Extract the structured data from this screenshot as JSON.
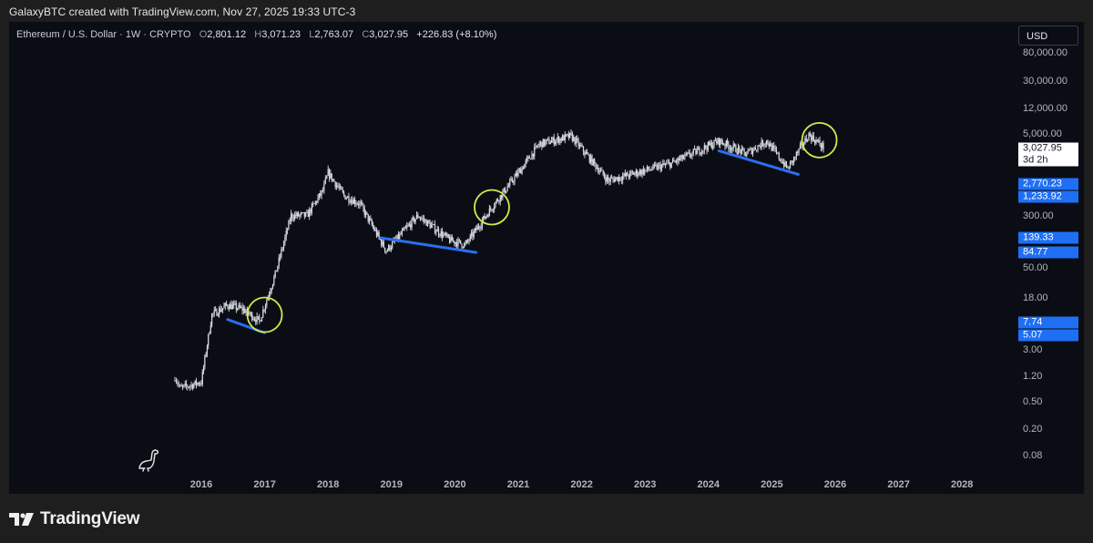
{
  "credit": "GalaxyBTC created with TradingView.com, Nov 27, 2025 19:33 UTC-3",
  "legend": {
    "symbol": "Ethereum / U.S. Dollar · 1W · CRYPTO",
    "o_label": "O",
    "o": "2,801.12",
    "h_label": "H",
    "h": "3,071.23",
    "l_label": "L",
    "l": "2,763.07",
    "c_label": "C",
    "c": "3,027.95",
    "change": "+226.83 (+8.10%)"
  },
  "currency": "USD",
  "footer_brand": "TradingView",
  "colors": {
    "background": "#0b0d15",
    "candles": "#d9dce3",
    "trendline": "#2a6ff0",
    "circle": "#d4e94a",
    "label_blue": "#1f6ff5"
  },
  "chart_data": {
    "type": "candlestick",
    "title": "Ethereum / U.S. Dollar · 1W · CRYPTO",
    "y_scale": "log",
    "y_tick_labels": [
      "80,000.00",
      "30,000.00",
      "12,000.00",
      "5,000.00",
      "300.00",
      "50.00",
      "18.00",
      "3.00",
      "1.20",
      "0.50",
      "0.20",
      "0.08"
    ],
    "x_tick_labels": [
      "2016",
      "2017",
      "2018",
      "2019",
      "2020",
      "2021",
      "2022",
      "2023",
      "2024",
      "2025",
      "2026",
      "2027",
      "2028"
    ],
    "price_labels": [
      {
        "text": "3,027.95",
        "style": "white"
      },
      {
        "text": "3d 2h",
        "style": "countdown"
      },
      {
        "text": "2,770.23",
        "style": "blue"
      },
      {
        "text": "1,233.92",
        "style": "blue"
      },
      {
        "text": "139.33",
        "style": "blue"
      },
      {
        "text": "84.77",
        "style": "blue"
      },
      {
        "text": "7.74",
        "style": "blue"
      },
      {
        "text": "5.07",
        "style": "blue"
      }
    ],
    "approx_weekly_close_path": [
      {
        "date": "2015-08",
        "price": 1.2
      },
      {
        "date": "2015-09",
        "price": 0.8
      },
      {
        "date": "2016-01",
        "price": 1.0
      },
      {
        "date": "2016-03",
        "price": 10
      },
      {
        "date": "2016-06",
        "price": 14
      },
      {
        "date": "2016-09",
        "price": 12
      },
      {
        "date": "2016-12",
        "price": 8
      },
      {
        "date": "2017-03",
        "price": 40
      },
      {
        "date": "2017-06",
        "price": 300
      },
      {
        "date": "2017-09",
        "price": 300
      },
      {
        "date": "2017-12",
        "price": 700
      },
      {
        "date": "2018-01",
        "price": 1300
      },
      {
        "date": "2018-04",
        "price": 600
      },
      {
        "date": "2018-07",
        "price": 450
      },
      {
        "date": "2018-12",
        "price": 90
      },
      {
        "date": "2019-06",
        "price": 300
      },
      {
        "date": "2019-12",
        "price": 130
      },
      {
        "date": "2020-03",
        "price": 110
      },
      {
        "date": "2020-08",
        "price": 400
      },
      {
        "date": "2021-01",
        "price": 1300
      },
      {
        "date": "2021-05",
        "price": 3500
      },
      {
        "date": "2021-11",
        "price": 4600
      },
      {
        "date": "2022-06",
        "price": 1000
      },
      {
        "date": "2023-06",
        "price": 1800
      },
      {
        "date": "2024-03",
        "price": 3900
      },
      {
        "date": "2024-08",
        "price": 2500
      },
      {
        "date": "2024-12",
        "price": 3900
      },
      {
        "date": "2025-04",
        "price": 1500
      },
      {
        "date": "2025-08",
        "price": 4800
      },
      {
        "date": "2025-11",
        "price": 3028
      }
    ],
    "trendlines": [
      {
        "from": {
          "date": "2016-06",
          "price": 8.5
        },
        "to": {
          "date": "2017-01",
          "price": 5.4
        }
      },
      {
        "from": {
          "date": "2018-11",
          "price": 140
        },
        "to": {
          "date": "2020-05",
          "price": 85
        }
      },
      {
        "from": {
          "date": "2024-03",
          "price": 2770
        },
        "to": {
          "date": "2025-06",
          "price": 1234
        }
      }
    ],
    "circled_points": [
      {
        "date": "2017-01",
        "price": 10
      },
      {
        "date": "2020-08",
        "price": 400
      },
      {
        "date": "2025-10",
        "price": 4000
      }
    ]
  }
}
